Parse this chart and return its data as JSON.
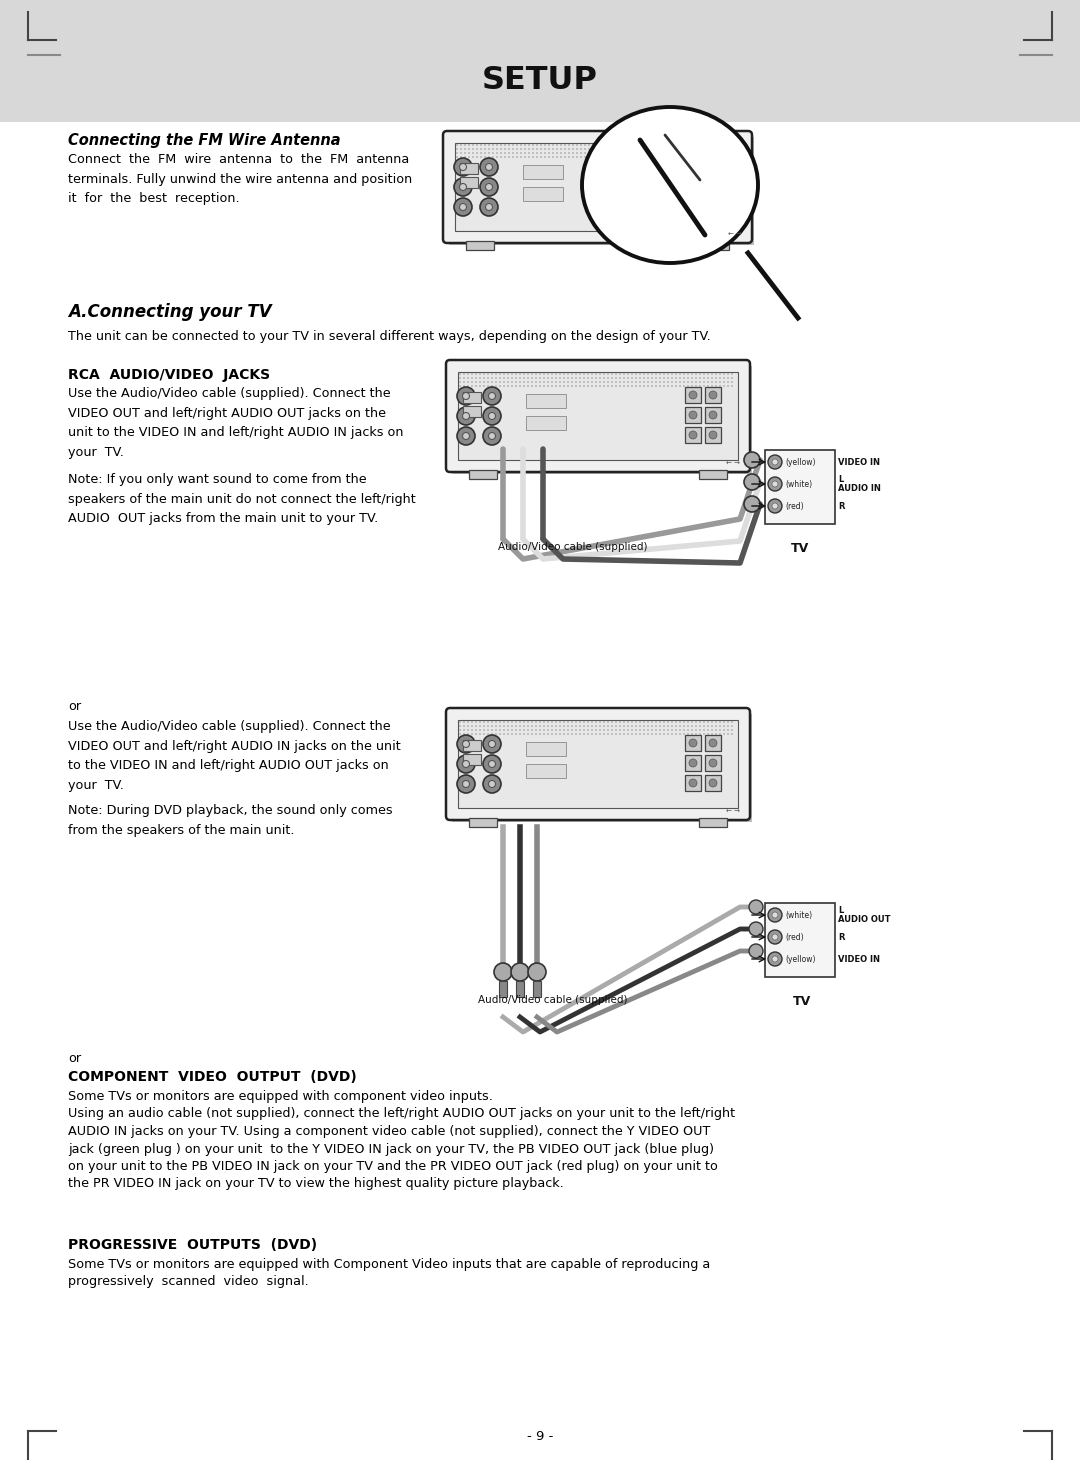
{
  "title": "SETUP",
  "page_bg": "#ffffff",
  "header_bg": "#d8d8d8",
  "text_color": "#000000",
  "section1_heading": "Connecting the FM Wire Antenna",
  "section1_body": "Connect  the  FM  wire  antenna  to  the  FM  antenna\nterminals. Fully unwind the wire antenna and position\nit  for  the  best  reception.",
  "section2_heading": "A.Connecting your TV",
  "section2_body": "The unit can be connected to your TV in several different ways, depending on the design of your TV.",
  "section3_heading": "RCA  AUDIO/VIDEO  JACKS",
  "section3_body1": "Use the Audio/Video cable (supplied). Connect the\nVIDEO OUT and left/right AUDIO OUT jacks on the\nunit to the VIDEO IN and left/right AUDIO IN jacks on\nyour  TV.",
  "section3_body2": "Note: If you only want sound to come from the\nspeakers of the main unit do not connect the left/right\nAUDIO  OUT jacks from the main unit to your TV.",
  "caption1": "Audio/Video cable (supplied)",
  "tv1": "TV",
  "or1": "or",
  "section4_body1": "Use the Audio/Video cable (supplied). Connect the\nVIDEO OUT and left/right AUDIO IN jacks on the unit\nto the VIDEO IN and left/right AUDIO OUT jacks on\nyour  TV.",
  "section4_body2": "Note: During DVD playback, the sound only comes\nfrom the speakers of the main unit.",
  "caption2": "Audio/Video cable (supplied)",
  "tv2": "TV",
  "or2": "or",
  "section5_heading": "COMPONENT  VIDEO  OUTPUT  (DVD)",
  "section5_lines": [
    "Some TVs or monitors are equipped with component video inputs.",
    "Using an audio cable (not supplied), connect the left/right AUDIO OUT jacks on your unit to the left/right",
    "AUDIO IN jacks on your TV. Using a component video cable (not supplied), connect the Y VIDEO OUT",
    "jack (green plug ) on your unit  to the Y VIDEO IN jack on your TV, the PB VIDEO OUT jack (blue plug)",
    "on your unit to the PB VIDEO IN jack on your TV and the PR VIDEO OUT jack (red plug) on your unit to",
    "the PR VIDEO IN jack on your TV to view the highest quality picture playback."
  ],
  "section6_heading": "PROGRESSIVE  OUTPUTS  (DVD)",
  "section6_lines": [
    "Some TVs or monitors are equipped with Component Video inputs that are capable of reproducing a",
    "progressively  scanned  video  signal."
  ],
  "page_num": "- 9 -"
}
